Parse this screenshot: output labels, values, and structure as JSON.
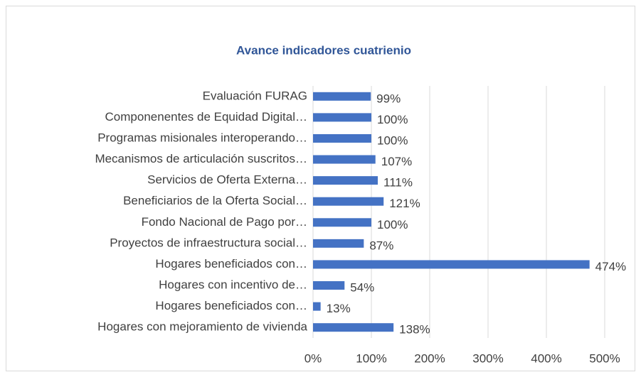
{
  "chart_data": {
    "type": "barh",
    "title": "Avance indicadores cuatrienio",
    "categories": [
      "Evaluación FURAG",
      "Componenentes de Equidad Digital…",
      "Programas misionales interoperando…",
      "Mecanismos de articulación suscritos…",
      "Servicios de Oferta Externa…",
      "Beneficiarios de la Oferta Social…",
      "Fondo Nacional de Pago por…",
      "Proyectos de infraestructura social…",
      "Hogares beneficiados con…",
      "Hogares con incentivo de…",
      "Hogares beneficiados con…",
      "Hogares con mejoramiento de vivienda"
    ],
    "values": [
      99,
      100,
      100,
      107,
      111,
      121,
      100,
      87,
      474,
      54,
      13,
      138
    ],
    "value_labels": [
      "99%",
      "100%",
      "100%",
      "107%",
      "111%",
      "121%",
      "100%",
      "87%",
      "474%",
      "54%",
      "13%",
      "138%"
    ],
    "color": "#4472C4",
    "xlim": [
      0,
      500
    ],
    "xticks": [
      {
        "value": 0,
        "label": "0%"
      },
      {
        "value": 100,
        "label": "100%"
      },
      {
        "value": 200,
        "label": "200%"
      },
      {
        "value": 300,
        "label": "300%"
      },
      {
        "value": 400,
        "label": "400%"
      },
      {
        "value": 500,
        "label": "500%"
      }
    ],
    "grid": true
  }
}
